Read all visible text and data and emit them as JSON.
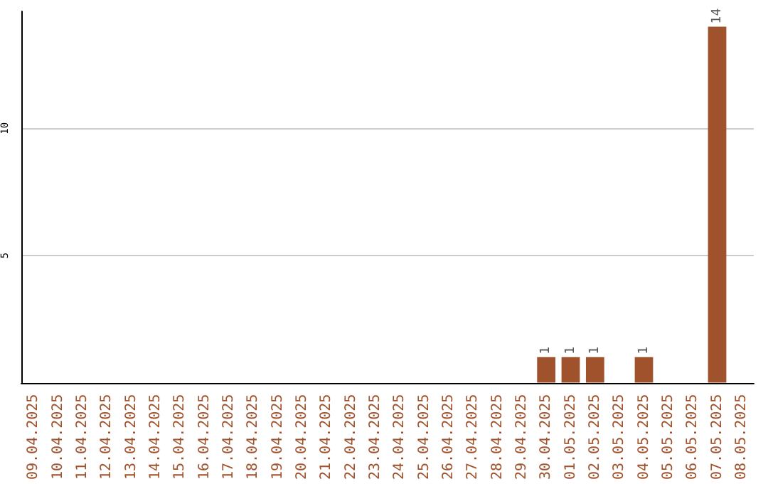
{
  "chart_data": {
    "type": "bar",
    "categories": [
      "09.04.2025",
      "10.04.2025",
      "11.04.2025",
      "12.04.2025",
      "13.04.2025",
      "14.04.2025",
      "15.04.2025",
      "16.04.2025",
      "17.04.2025",
      "18.04.2025",
      "19.04.2025",
      "20.04.2025",
      "21.04.2025",
      "22.04.2025",
      "23.04.2025",
      "24.04.2025",
      "25.04.2025",
      "26.04.2025",
      "27.04.2025",
      "28.04.2025",
      "29.04.2025",
      "30.04.2025",
      "01.05.2025",
      "02.05.2025",
      "03.05.2025",
      "04.05.2025",
      "05.05.2025",
      "06.05.2025",
      "07.05.2025",
      "08.05.2025"
    ],
    "values": [
      0,
      0,
      0,
      0,
      0,
      0,
      0,
      0,
      0,
      0,
      0,
      0,
      0,
      0,
      0,
      0,
      0,
      0,
      0,
      0,
      0,
      1,
      1,
      1,
      0,
      1,
      0,
      0,
      14,
      0
    ],
    "value_labels": [
      null,
      null,
      null,
      null,
      null,
      null,
      null,
      null,
      null,
      null,
      null,
      null,
      null,
      null,
      null,
      null,
      null,
      null,
      null,
      null,
      null,
      "1",
      "1",
      "1",
      null,
      "1",
      null,
      null,
      "14",
      null
    ],
    "color": "#a0522d",
    "ylim": [
      0,
      14.6
    ],
    "yticks": [
      5,
      10
    ],
    "grid": "y"
  }
}
